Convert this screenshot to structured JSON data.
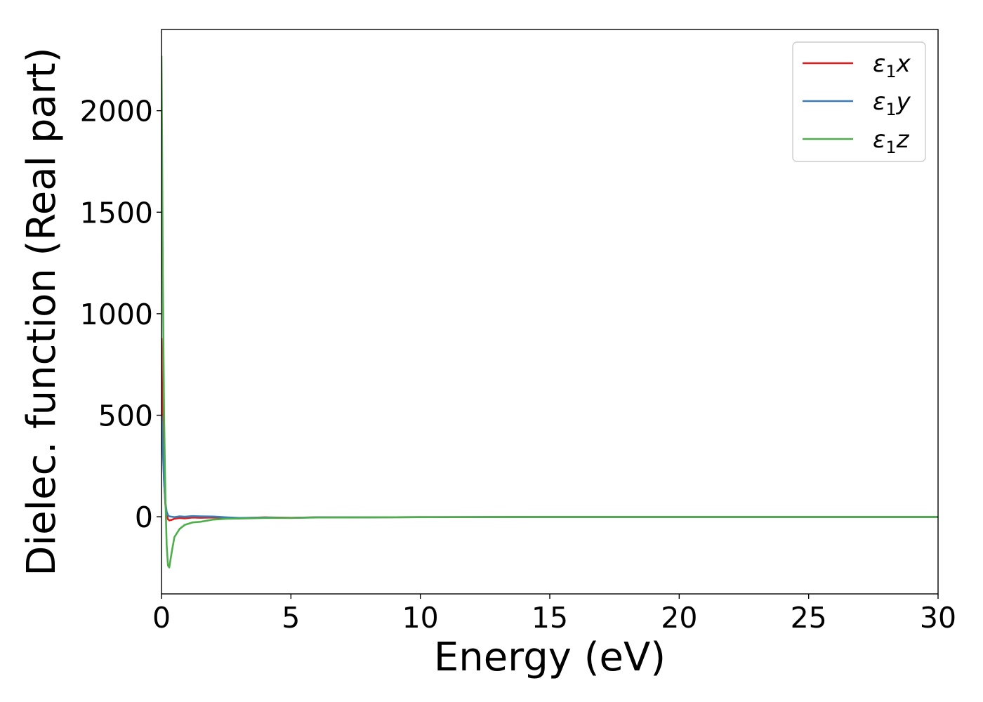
{
  "chart_data": {
    "type": "line",
    "title": "",
    "xlabel": "Energy (eV)",
    "ylabel": "Dielec. function (Real part)",
    "xlim": [
      0,
      30
    ],
    "ylim": [
      -380,
      2400
    ],
    "x_ticks": [
      0,
      5,
      10,
      15,
      20,
      25,
      30
    ],
    "x_tick_labels": [
      "0",
      "5",
      "10",
      "15",
      "20",
      "25",
      "30"
    ],
    "y_ticks": [
      0,
      500,
      1000,
      1500,
      2000
    ],
    "y_tick_labels": [
      "0",
      "500",
      "1000",
      "1500",
      "2000"
    ],
    "grid": false,
    "legend_position": "top-right",
    "series": [
      {
        "name": "ε₁x",
        "legend_base": "ε",
        "legend_sub": "1",
        "legend_suffix": "x",
        "color": "#e41a1c",
        "x": [
          0,
          0.02,
          0.05,
          0.1,
          0.15,
          0.2,
          0.25,
          0.3,
          0.4,
          0.5,
          0.7,
          0.9,
          1.2,
          1.5,
          2.0,
          2.5,
          3.0,
          4.0,
          5.0,
          6.0,
          8.0,
          10,
          15,
          20,
          25,
          30
        ],
        "y": [
          880,
          650,
          380,
          180,
          60,
          10,
          -12,
          -18,
          -15,
          -10,
          -6,
          -8,
          -4,
          -5,
          -4,
          -6,
          -7,
          -3,
          -5,
          -3,
          -3,
          -2,
          -1,
          -1,
          -1,
          -1
        ]
      },
      {
        "name": "ε₁y",
        "legend_base": "ε",
        "legend_sub": "1",
        "legend_suffix": "y",
        "color": "#377eb8",
        "x": [
          0,
          0.02,
          0.05,
          0.1,
          0.15,
          0.2,
          0.25,
          0.3,
          0.4,
          0.5,
          0.7,
          0.9,
          1.2,
          1.5,
          2.0,
          2.5,
          3.0,
          4.0,
          5.0,
          6.0,
          8.0,
          10,
          15,
          20,
          25,
          30
        ],
        "y": [
          500,
          460,
          330,
          170,
          70,
          25,
          8,
          2,
          0,
          -2,
          2,
          0,
          3,
          2,
          1,
          -3,
          -6,
          -4,
          -6,
          -3,
          -3,
          -2,
          -1,
          -1,
          -1,
          -1
        ]
      },
      {
        "name": "ε₁z",
        "legend_base": "ε",
        "legend_sub": "1",
        "legend_suffix": "z",
        "color": "#4daf4a",
        "x": [
          0,
          0.02,
          0.05,
          0.1,
          0.15,
          0.2,
          0.25,
          0.3,
          0.4,
          0.5,
          0.7,
          0.9,
          1.2,
          1.5,
          2.0,
          2.5,
          3.0,
          4.0,
          5.0,
          6.0,
          8.0,
          10,
          15,
          20,
          25,
          30
        ],
        "y": [
          2270,
          1900,
          1200,
          500,
          100,
          -140,
          -240,
          -250,
          -170,
          -100,
          -60,
          -40,
          -28,
          -25,
          -14,
          -10,
          -9,
          -6,
          -6,
          -4,
          -3,
          -2,
          -1,
          -1,
          -1,
          -1
        ]
      }
    ]
  }
}
